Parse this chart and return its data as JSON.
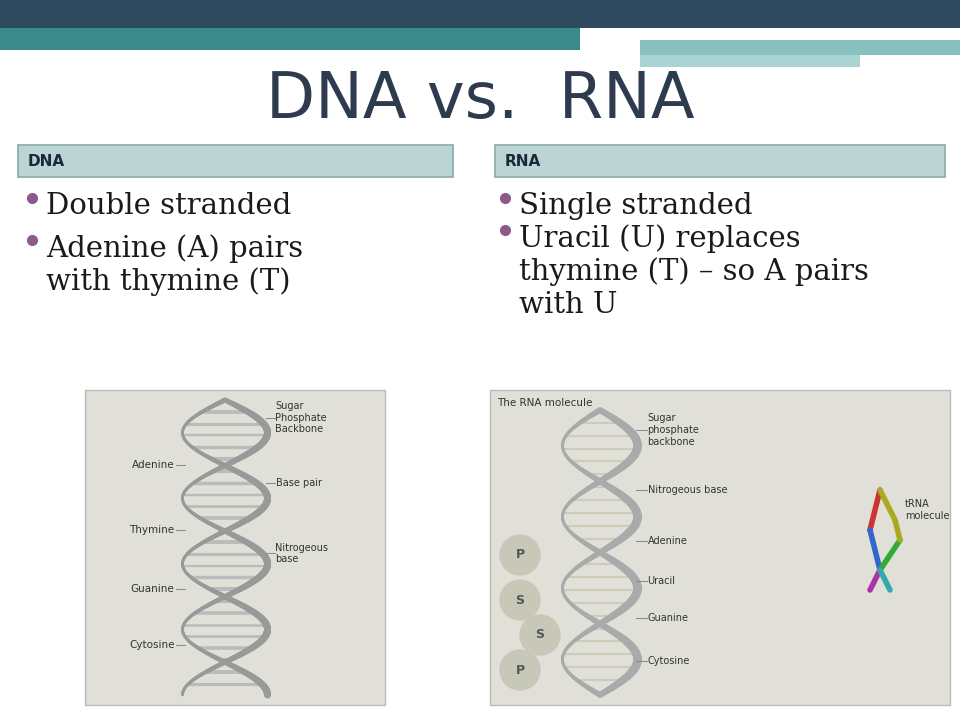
{
  "title": "DNA vs.  RNA",
  "title_color": "#2e3a4e",
  "title_fontsize": 46,
  "bg_color": "#ffffff",
  "header_bar1_color": "#2e4a5e",
  "header_bar2_color": "#3a8a8a",
  "header_bar3_color": "#88c0c0",
  "header_bar4_color": "#aad4d4",
  "dna_label": "DNA",
  "rna_label": "RNA",
  "box_bg_color": "#bdd4d4",
  "box_border_color": "#88aaaa",
  "dna_bullet1": "Double stranded",
  "dna_bullet2": "Adenine (A) pairs\nwith thymine (T)",
  "rna_bullet1": "Single stranded",
  "rna_bullet2": "Uracil (U) replaces\nthymine (T) – so A pairs\nwith U",
  "bullet_color": "#8b5a8b",
  "text_color": "#1a1a1a",
  "label_color": "#1a2a3a",
  "bullet_fontsize": 21,
  "label_fontsize": 11,
  "helix_color": "#999999",
  "helix_rung_color": "#bbbbbb",
  "img_bg_color": "#e0e0d8"
}
